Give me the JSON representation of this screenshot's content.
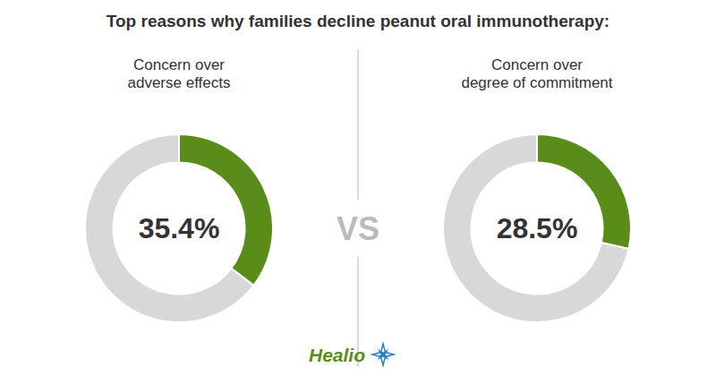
{
  "chart_data": [
    {
      "type": "donut",
      "title": "Top reasons why families decline peanut oral immunotherapy:",
      "subtitle": "Concern over\nadverse effects",
      "values": [
        35.4,
        64.6
      ],
      "value_labels": [
        "35.4%",
        null
      ],
      "data_labels": true,
      "colors": [
        "#5a8c1a",
        "#d8d8d8"
      ],
      "annotations": [
        "VS",
        "Healio"
      ]
    },
    {
      "type": "donut",
      "subtitle": "Concern over\ndegree of commitment",
      "values": [
        28.5,
        71.5
      ],
      "value_labels": [
        "28.5%",
        null
      ],
      "data_labels": true,
      "colors": [
        "#5a8c1a",
        "#d8d8d8"
      ]
    }
  ]
}
